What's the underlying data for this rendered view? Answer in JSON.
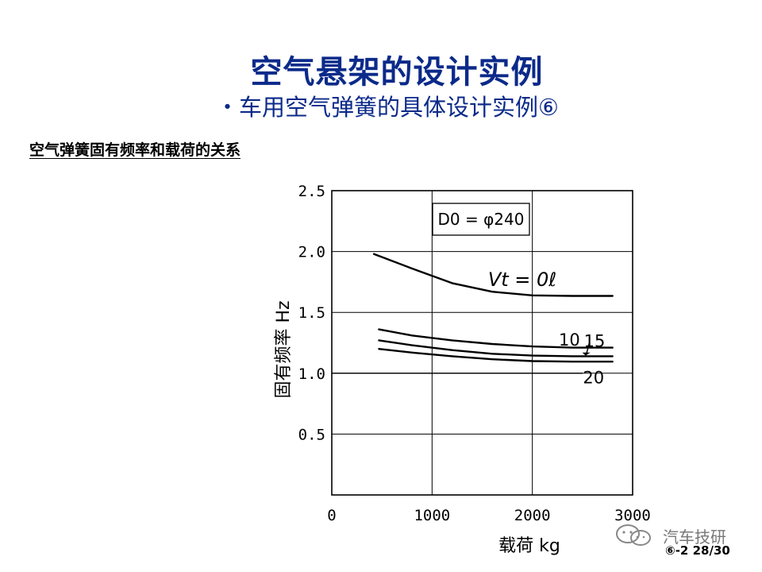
{
  "slide": {
    "title": "空气悬架的设计实例",
    "subtitle": "・车用空气弹簧的具体设计实例⑥",
    "section_heading": "空气弹簧固有频率和载荷的关系",
    "watermark": "汽车技研",
    "page_number": "⑥-2 28/30"
  },
  "chart_data": {
    "type": "line",
    "title": "",
    "xlabel": "载荷 kg",
    "ylabel": "固有频率 Hz",
    "xlim": [
      0,
      3000
    ],
    "ylim": [
      0,
      2.5
    ],
    "x_ticks": [
      0,
      1000,
      2000,
      3000
    ],
    "x_tick_labels": [
      "0",
      "1000",
      "2000",
      "3000"
    ],
    "y_ticks": [
      0.5,
      1.0,
      1.5,
      2.0,
      2.5
    ],
    "y_tick_labels": [
      "0.5",
      "1.0",
      "1.5",
      "2.0",
      "2.5"
    ],
    "grid": true,
    "annotation": "D0 = φ240",
    "series_label_prefix": "Vt = 0ℓ",
    "series": [
      {
        "name": "0",
        "x": [
          420,
          800,
          1200,
          1600,
          2000,
          2400,
          2800
        ],
        "y": [
          1.98,
          1.86,
          1.74,
          1.67,
          1.64,
          1.635,
          1.635
        ]
      },
      {
        "name": "10",
        "x": [
          470,
          800,
          1200,
          1600,
          2000,
          2400,
          2800
        ],
        "y": [
          1.36,
          1.31,
          1.27,
          1.24,
          1.22,
          1.21,
          1.21
        ]
      },
      {
        "name": "15",
        "x": [
          470,
          800,
          1200,
          1600,
          2000,
          2400,
          2800
        ],
        "y": [
          1.27,
          1.23,
          1.19,
          1.16,
          1.145,
          1.14,
          1.14
        ]
      },
      {
        "name": "20",
        "x": [
          470,
          800,
          1200,
          1600,
          2000,
          2400,
          2800
        ],
        "y": [
          1.2,
          1.17,
          1.14,
          1.115,
          1.1,
          1.095,
          1.095
        ]
      },
      {
        "name": "ref 1.0",
        "x": [
          0,
          2500
        ],
        "y": [
          1.0,
          1.0
        ]
      }
    ],
    "series_labels": [
      {
        "text": "10",
        "x": 2370,
        "y": 1.28
      },
      {
        "text": "15",
        "x": 2620,
        "y": 1.27
      },
      {
        "text": "20",
        "x": 2610,
        "y": 0.97
      }
    ]
  }
}
